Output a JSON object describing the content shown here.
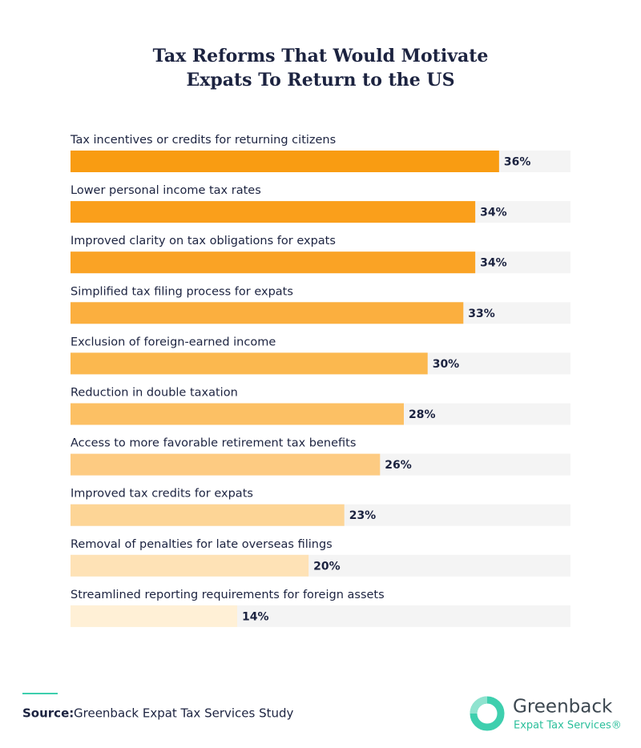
{
  "chart_data": {
    "type": "hbar",
    "title": [
      "Tax Reforms That Would Motivate",
      "Expats To Return to the US"
    ],
    "categories": [
      "Tax incentives or credits for returning citizens",
      "Lower personal income tax rates",
      "Improved clarity on tax obligations for expats",
      "Simplified tax filing process for expats",
      "Exclusion of foreign-earned income",
      "Reduction in double taxation",
      "Access to more favorable retirement tax benefits",
      "Improved tax credits for expats",
      "Removal of penalties for late overseas filings",
      "Streamlined reporting requirements for foreign assets"
    ],
    "values": [
      36,
      34,
      34,
      33,
      30,
      28,
      26,
      23,
      20,
      14
    ],
    "value_labels": [
      "36%",
      "34%",
      "34%",
      "33%",
      "30%",
      "28%",
      "26%",
      "23%",
      "20%",
      "14%"
    ],
    "colors": [
      "#f99c12",
      "#fa9f1b",
      "#faa325",
      "#fbaf3f",
      "#fbb84f",
      "#fcc064",
      "#fdcb82",
      "#fdd596",
      "#fee2b6",
      "#fff0d6"
    ],
    "xlim": [
      0,
      42
    ]
  },
  "source": {
    "label": "Source:",
    "text": "Greenback Expat Tax Services Study"
  },
  "logo": {
    "name": "Greenback",
    "tagline": "Expat Tax Services®"
  }
}
